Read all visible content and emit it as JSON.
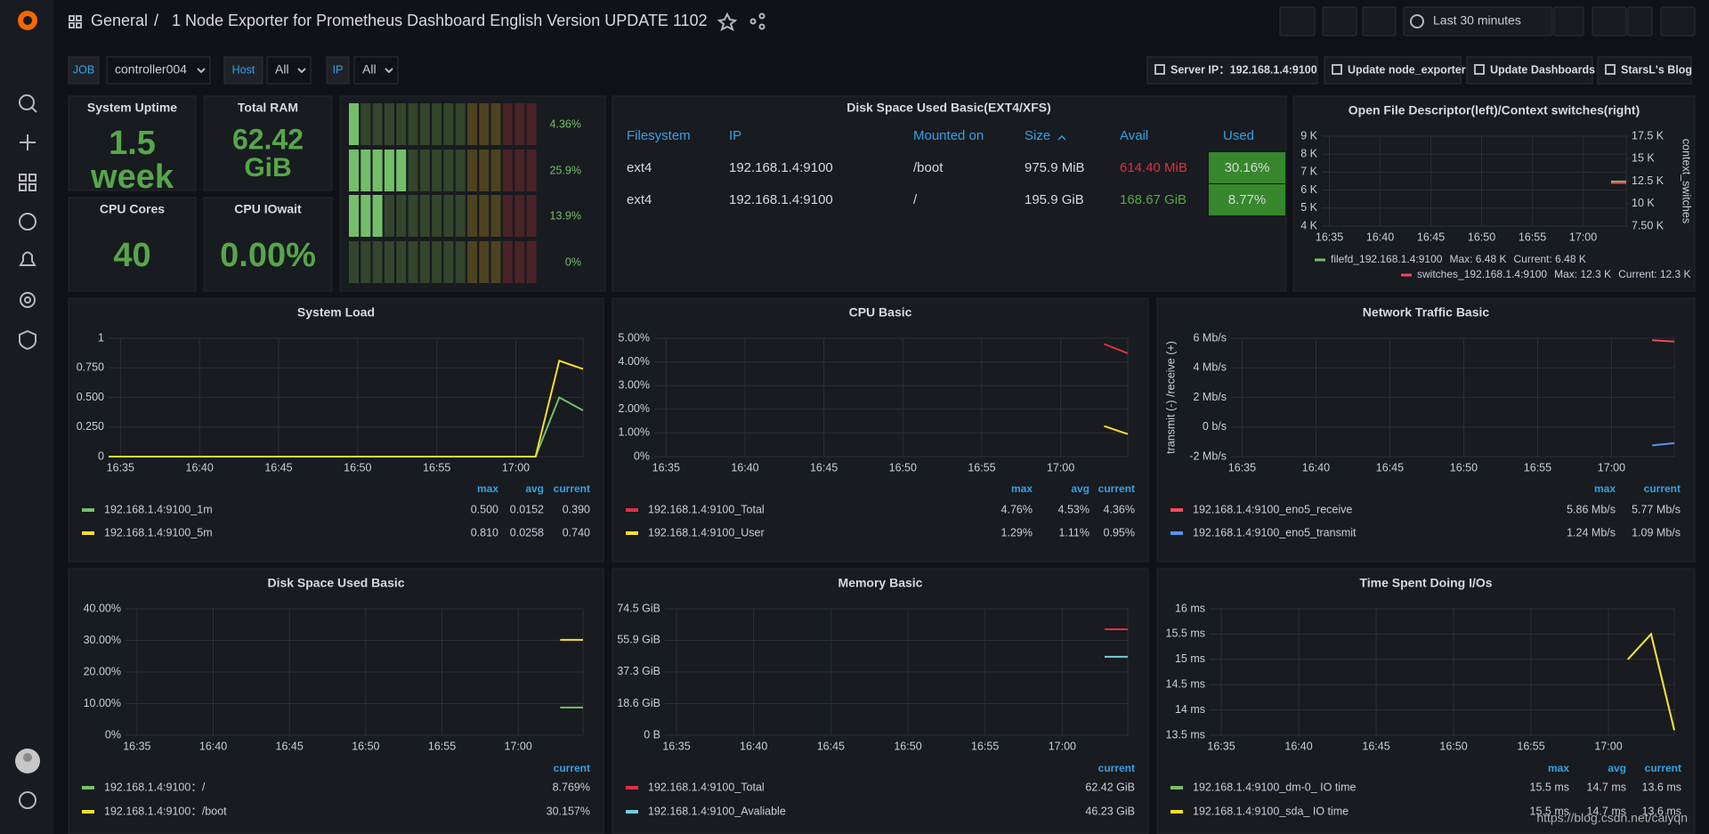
{
  "topbar": {
    "root": "General",
    "separator": "/",
    "title": "1 Node Exporter for Prometheus Dashboard English Version UPDATE 1102",
    "time_range": "Last 30 minutes"
  },
  "variables": [
    {
      "label": "JOB",
      "value": "controller004"
    },
    {
      "label": "Host",
      "value": "All"
    },
    {
      "label": "IP",
      "value": "All"
    }
  ],
  "links": [
    "Server IP：192.168.1.4:9100",
    "Update node_exporter",
    "Update Dashboards",
    "StarsL's Blog"
  ],
  "stats": [
    {
      "title": "System Uptime",
      "value": "1.5",
      "unit": "week"
    },
    {
      "title": "Total RAM",
      "value": "62.42",
      "unit": "GiB"
    },
    {
      "title": "CPU Cores",
      "value": "40"
    },
    {
      "title": "CPU IOwait",
      "value": "0.00%"
    }
  ],
  "bargauge": {
    "xlim": [
      0,
      100
    ],
    "values": [
      4.36,
      25.9,
      13.9,
      0
    ],
    "value_labels": [
      "4.36%",
      "25.9%",
      "13.9%",
      "0%"
    ]
  },
  "disk_table": {
    "title": "Disk Space Used Basic(EXT4/XFS)",
    "columns": [
      "Filesystem",
      "IP",
      "Mounted on",
      "Size",
      "Avail",
      "Used"
    ],
    "rows": [
      [
        "ext4",
        "192.168.1.4:9100",
        "/boot",
        "975.9 MiB",
        "614.40 MiB",
        "30.16%"
      ],
      [
        "ext4",
        "192.168.1.4:9100",
        "/",
        "195.9 GiB",
        "168.67 GiB",
        "8.77%"
      ]
    ],
    "avail_colors": [
      "#e02f44",
      "#56a64b"
    ]
  },
  "time_ticks": [
    "16:35",
    "16:40",
    "16:45",
    "16:50",
    "16:55",
    "17:00"
  ],
  "graphs": [
    {
      "title": "System Load",
      "ylim": [
        0,
        1
      ],
      "yticks": [
        0,
        {
          "value": 0.25,
          "label": "0.250"
        },
        {
          "value": 0.5,
          "label": "0.500"
        },
        {
          "value": 0.75,
          "label": "0.750"
        },
        1
      ],
      "legend_columns": [
        "max",
        "avg",
        "current"
      ],
      "series": [
        {
          "name": "192.168.1.4:9100_1m",
          "color": "#73bf69",
          "values": [
            0,
            0,
            0,
            0,
            0,
            0,
            0,
            0,
            0,
            0,
            0,
            0,
            0,
            0,
            0,
            0,
            0,
            0,
            0,
            0.5,
            0.39
          ],
          "stats": [
            "0.500",
            "0.0152",
            "0.390"
          ]
        },
        {
          "name": "192.168.1.4:9100_5m",
          "color": "#fade2a",
          "values": [
            0,
            0,
            0,
            0,
            0,
            0,
            0,
            0,
            0,
            0,
            0,
            0,
            0,
            0,
            0,
            0,
            0,
            0,
            0,
            0.81,
            0.74
          ],
          "stats": [
            "0.810",
            "0.0258",
            "0.740"
          ]
        }
      ]
    },
    {
      "title": "CPU Basic",
      "ylim": [
        0,
        5
      ],
      "yticks": [
        {
          "value": 0,
          "label": "0%"
        },
        {
          "value": 1,
          "label": "1.00%"
        },
        {
          "value": 2,
          "label": "2.00%"
        },
        {
          "value": 3,
          "label": "3.00%"
        },
        {
          "value": 4,
          "label": "4.00%"
        },
        {
          "value": 5,
          "label": "5.00%"
        }
      ],
      "legend_columns": [
        "max",
        "avg",
        "current"
      ],
      "series": [
        {
          "name": "192.168.1.4:9100_Total",
          "color": "#e02f44",
          "values": [
            null,
            null,
            null,
            null,
            null,
            null,
            null,
            null,
            null,
            null,
            null,
            null,
            null,
            null,
            null,
            null,
            null,
            null,
            null,
            4.76,
            4.36
          ],
          "stats": [
            "4.76%",
            "4.53%",
            "4.36%"
          ]
        },
        {
          "name": "192.168.1.4:9100_User",
          "color": "#fade2a",
          "values": [
            null,
            null,
            null,
            null,
            null,
            null,
            null,
            null,
            null,
            null,
            null,
            null,
            null,
            null,
            null,
            null,
            null,
            null,
            null,
            1.29,
            0.95
          ],
          "stats": [
            "1.29%",
            "1.11%",
            "0.95%"
          ]
        }
      ]
    },
    {
      "title": "Network Traffic Basic",
      "y_label": "transmit (-) /receive (+)",
      "ylim": [
        -2,
        6
      ],
      "yticks": [
        {
          "value": -2,
          "label": "-2 Mb/s"
        },
        {
          "value": 0,
          "label": "0 b/s"
        },
        {
          "value": 2,
          "label": "2 Mb/s"
        },
        {
          "value": 4,
          "label": "4 Mb/s"
        },
        {
          "value": 6,
          "label": "6 Mb/s"
        }
      ],
      "legend_columns": [
        "max",
        "current"
      ],
      "series": [
        {
          "name": "192.168.1.4:9100_eno5_receive",
          "color": "#f2495c",
          "values": [
            null,
            null,
            null,
            null,
            null,
            null,
            null,
            null,
            null,
            null,
            null,
            null,
            null,
            null,
            null,
            null,
            null,
            null,
            null,
            5.86,
            5.77
          ],
          "stats": [
            "5.86 Mb/s",
            "5.77 Mb/s"
          ]
        },
        {
          "name": "192.168.1.4:9100_eno5_transmit",
          "color": "#5794f2",
          "values": [
            null,
            null,
            null,
            null,
            null,
            null,
            null,
            null,
            null,
            null,
            null,
            null,
            null,
            null,
            null,
            null,
            null,
            null,
            null,
            -1.24,
            -1.09
          ],
          "stats": [
            "1.24 Mb/s",
            "1.09 Mb/s"
          ]
        }
      ]
    },
    {
      "title": "Disk Space Used Basic",
      "ylim": [
        0,
        40
      ],
      "yticks": [
        {
          "value": 0,
          "label": "0%"
        },
        {
          "value": 10,
          "label": "10.00%"
        },
        {
          "value": 20,
          "label": "20.00%"
        },
        {
          "value": 30,
          "label": "30.00%"
        },
        {
          "value": 40,
          "label": "40.00%"
        }
      ],
      "legend_columns": [
        "current"
      ],
      "series": [
        {
          "name": "192.168.1.4:9100：/",
          "color": "#73bf69",
          "values": [
            null,
            null,
            null,
            null,
            null,
            null,
            null,
            null,
            null,
            null,
            null,
            null,
            null,
            null,
            null,
            null,
            null,
            null,
            null,
            8.769,
            8.769
          ],
          "stats": [
            "8.769%"
          ]
        },
        {
          "name": "192.168.1.4:9100：/boot",
          "color": "#fade2a",
          "values": [
            null,
            null,
            null,
            null,
            null,
            null,
            null,
            null,
            null,
            null,
            null,
            null,
            null,
            null,
            null,
            null,
            null,
            null,
            null,
            30.157,
            30.157
          ],
          "stats": [
            "30.157%"
          ]
        }
      ]
    },
    {
      "title": "Memory Basic",
      "ylim": [
        0,
        74.5
      ],
      "yticks": [
        {
          "value": 0,
          "label": "0 B"
        },
        {
          "value": 18.6,
          "label": "18.6 GiB"
        },
        {
          "value": 37.3,
          "label": "37.3 GiB"
        },
        {
          "value": 55.9,
          "label": "55.9 GiB"
        },
        {
          "value": 74.5,
          "label": "74.5 GiB"
        }
      ],
      "legend_columns": [
        "current"
      ],
      "series": [
        {
          "name": "192.168.1.4:9100_Total",
          "color": "#e02f44",
          "values": [
            null,
            null,
            null,
            null,
            null,
            null,
            null,
            null,
            null,
            null,
            null,
            null,
            null,
            null,
            null,
            null,
            null,
            null,
            null,
            62.42,
            62.42
          ],
          "stats": [
            "62.42 GiB"
          ]
        },
        {
          "name": "192.168.1.4:9100_Avaliable",
          "color": "#6ed0e0",
          "values": [
            null,
            null,
            null,
            null,
            null,
            null,
            null,
            null,
            null,
            null,
            null,
            null,
            null,
            null,
            null,
            null,
            null,
            null,
            null,
            46.23,
            46.23
          ],
          "stats": [
            "46.23 GiB"
          ]
        }
      ]
    },
    {
      "title": "Time Spent Doing I/Os",
      "ylim": [
        13.5,
        16
      ],
      "yticks": [
        {
          "value": 13.5,
          "label": "13.5 ms"
        },
        {
          "value": 14,
          "label": "14 ms"
        },
        {
          "value": 14.5,
          "label": "14.5 ms"
        },
        {
          "value": 15,
          "label": "15 ms"
        },
        {
          "value": 15.5,
          "label": "15.5 ms"
        },
        {
          "value": 16,
          "label": "16 ms"
        }
      ],
      "legend_columns": [
        "max",
        "avg",
        "current"
      ],
      "series": [
        {
          "name": "192.168.1.4:9100_dm-0_ IO time",
          "color": "#73bf69",
          "values": [
            null,
            null,
            null,
            null,
            null,
            null,
            null,
            null,
            null,
            null,
            null,
            null,
            null,
            null,
            null,
            null,
            null,
            null,
            15,
            15.5,
            13.6
          ],
          "stats": [
            "15.5 ms",
            "14.7 ms",
            "13.6 ms"
          ]
        },
        {
          "name": "192.168.1.4:9100_sda_ IO time",
          "color": "#fade2a",
          "values": [
            null,
            null,
            null,
            null,
            null,
            null,
            null,
            null,
            null,
            null,
            null,
            null,
            null,
            null,
            null,
            null,
            null,
            null,
            15,
            15.5,
            13.6
          ],
          "stats": [
            "15.5 ms",
            "14.7 ms",
            "13.6 ms"
          ]
        }
      ]
    },
    {
      "title": "Open File Descriptor(left)/Context switches(right)",
      "y2_label": "context_switches",
      "ylim": [
        4,
        9
      ],
      "yticks": [
        {
          "value": 4,
          "label": "4 K"
        },
        {
          "value": 5,
          "label": "5 K"
        },
        {
          "value": 6,
          "label": "6 K"
        },
        {
          "value": 7,
          "label": "7 K"
        },
        {
          "value": 8,
          "label": "8 K"
        },
        {
          "value": 9,
          "label": "9 K"
        }
      ],
      "y2lim": [
        7.5,
        17.5
      ],
      "y2ticks": [
        {
          "value": 7.5,
          "label": "7.50 K"
        },
        {
          "value": 10,
          "label": "10 K"
        },
        {
          "value": 12.5,
          "label": "12.5 K"
        },
        {
          "value": 15,
          "label": "15 K"
        },
        {
          "value": 17.5,
          "label": "17.5 K"
        }
      ],
      "series": [
        {
          "name": "filefd_192.168.1.4:9100",
          "color": "#73bf69",
          "values": [
            null,
            null,
            null,
            null,
            null,
            null,
            null,
            null,
            null,
            null,
            null,
            null,
            null,
            null,
            null,
            null,
            null,
            null,
            null,
            6.48,
            6.48
          ],
          "stats": [
            "Max: 6.48 K",
            "Current: 6.48 K"
          ]
        },
        {
          "name": "switches_192.168.1.4:9100",
          "color": "#f2495c",
          "axis": "y2",
          "values": [
            null,
            null,
            null,
            null,
            null,
            null,
            null,
            null,
            null,
            null,
            null,
            null,
            null,
            null,
            null,
            null,
            null,
            null,
            null,
            12.3,
            12.3
          ],
          "stats": [
            "Max: 12.3 K",
            "Current: 12.3 K"
          ]
        }
      ]
    }
  ],
  "watermark": "https://blog.csdn.net/caiyqn"
}
